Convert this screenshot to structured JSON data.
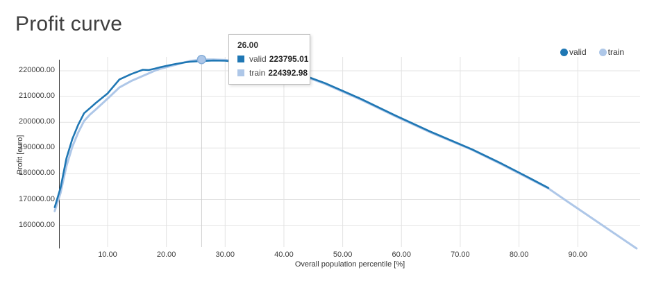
{
  "page": {
    "title": "Profit curve"
  },
  "legend": {
    "items": [
      {
        "label": "valid",
        "color": "#1f77b4"
      },
      {
        "label": "train",
        "color": "#aec7e8"
      }
    ]
  },
  "tooltip": {
    "header": "26.00",
    "rows": [
      {
        "label": "valid",
        "value": "223795.01",
        "color": "#1f77b4"
      },
      {
        "label": "train",
        "value": "224392.98",
        "color": "#aec7e8"
      }
    ]
  },
  "chart_data": {
    "type": "line",
    "title": "Profit curve",
    "xlabel": "Overall population percentile [%]",
    "ylabel": "Profit [euro]",
    "xlim": [
      0,
      101
    ],
    "ylim": [
      150000,
      226000
    ],
    "grid": true,
    "legend_position": "top-right",
    "x_ticks": [
      {
        "value": 10,
        "label": "10.00"
      },
      {
        "value": 20,
        "label": "20.00"
      },
      {
        "value": 30,
        "label": "30.00"
      },
      {
        "value": 40,
        "label": "40.00"
      },
      {
        "value": 50,
        "label": "50.00"
      },
      {
        "value": 60,
        "label": "60.00"
      },
      {
        "value": 70,
        "label": "70.00"
      },
      {
        "value": 80,
        "label": "80.00"
      },
      {
        "value": 90,
        "label": "90.00"
      }
    ],
    "y_ticks": [
      {
        "value": 160000,
        "label": "160000.00"
      },
      {
        "value": 170000,
        "label": "170000.00"
      },
      {
        "value": 180000,
        "label": "180000.00"
      },
      {
        "value": 190000,
        "label": "190000.00"
      },
      {
        "value": 200000,
        "label": "200000.00"
      },
      {
        "value": 210000,
        "label": "210000.00"
      },
      {
        "value": 220000,
        "label": "220000.00"
      }
    ],
    "hover": {
      "x": 26,
      "x_label": "26.00",
      "marker_series": "train",
      "values": {
        "valid": 223795.01,
        "train": 224392.98
      }
    },
    "series": [
      {
        "name": "valid",
        "color": "#1f77b4",
        "points": [
          [
            1,
            167000
          ],
          [
            2,
            174500
          ],
          [
            3,
            186000
          ],
          [
            4,
            193500
          ],
          [
            5,
            199000
          ],
          [
            6,
            203500
          ],
          [
            7,
            205500
          ],
          [
            8,
            207500
          ],
          [
            10,
            211200
          ],
          [
            12,
            216600
          ],
          [
            14,
            218700
          ],
          [
            16,
            220400
          ],
          [
            17,
            220300
          ],
          [
            18,
            220800
          ],
          [
            19,
            221400
          ],
          [
            21,
            222400
          ],
          [
            23,
            223200
          ],
          [
            24,
            223500
          ],
          [
            26,
            223795.01
          ],
          [
            28,
            224000
          ],
          [
            30,
            223900
          ],
          [
            34,
            223000
          ],
          [
            38,
            221100
          ],
          [
            41,
            219500
          ],
          [
            44,
            217700
          ],
          [
            47,
            215200
          ],
          [
            53,
            209200
          ],
          [
            59,
            202600
          ],
          [
            65,
            196300
          ],
          [
            72,
            189500
          ],
          [
            77,
            184000
          ],
          [
            81,
            179300
          ],
          [
            85,
            174500
          ]
        ]
      },
      {
        "name": "train",
        "color": "#aec7e8",
        "points": [
          [
            1,
            165500
          ],
          [
            2,
            172500
          ],
          [
            3,
            183000
          ],
          [
            4,
            190500
          ],
          [
            5,
            196000
          ],
          [
            6,
            200500
          ],
          [
            7,
            203000
          ],
          [
            8,
            205000
          ],
          [
            10,
            209200
          ],
          [
            12,
            213500
          ],
          [
            14,
            216000
          ],
          [
            16,
            218000
          ],
          [
            17,
            219000
          ],
          [
            18,
            220000
          ],
          [
            19,
            220800
          ],
          [
            21,
            222000
          ],
          [
            23,
            223200
          ],
          [
            24,
            223800
          ],
          [
            26,
            224392.98
          ],
          [
            28,
            224400
          ],
          [
            30,
            224200
          ],
          [
            34,
            222900
          ],
          [
            38,
            220900
          ],
          [
            41,
            219300
          ],
          [
            44,
            217400
          ],
          [
            47,
            214900
          ],
          [
            53,
            208900
          ],
          [
            59,
            202300
          ],
          [
            65,
            196000
          ],
          [
            72,
            189300
          ],
          [
            77,
            183700
          ],
          [
            81,
            179000
          ],
          [
            85,
            174300
          ],
          [
            88,
            169600
          ],
          [
            92,
            163400
          ],
          [
            96,
            157200
          ],
          [
            100,
            151000
          ]
        ]
      }
    ]
  }
}
